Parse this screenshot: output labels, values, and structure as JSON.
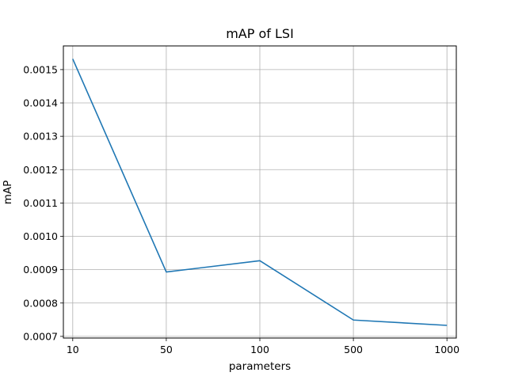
{
  "chart_data": {
    "type": "line",
    "title": "mAP of LSI",
    "xlabel": "parameters",
    "ylabel": "mAP",
    "categories": [
      "10",
      "50",
      "100",
      "500",
      "1000"
    ],
    "series": [
      {
        "values": [
          0.001532,
          0.000893,
          0.000927,
          0.000749,
          0.000733
        ],
        "color": "#1f77b4"
      }
    ],
    "ylim": [
      0.000695,
      0.001571
    ],
    "yticks": [
      0.0007,
      0.0008,
      0.0009,
      0.001,
      0.0011,
      0.0012,
      0.0013,
      0.0014,
      0.0015
    ],
    "ytick_labels": [
      "0.0007",
      "0.0008",
      "0.0009",
      "0.0010",
      "0.0011",
      "0.0012",
      "0.0013",
      "0.0014",
      "0.0015"
    ],
    "grid": true,
    "legend": "none"
  }
}
